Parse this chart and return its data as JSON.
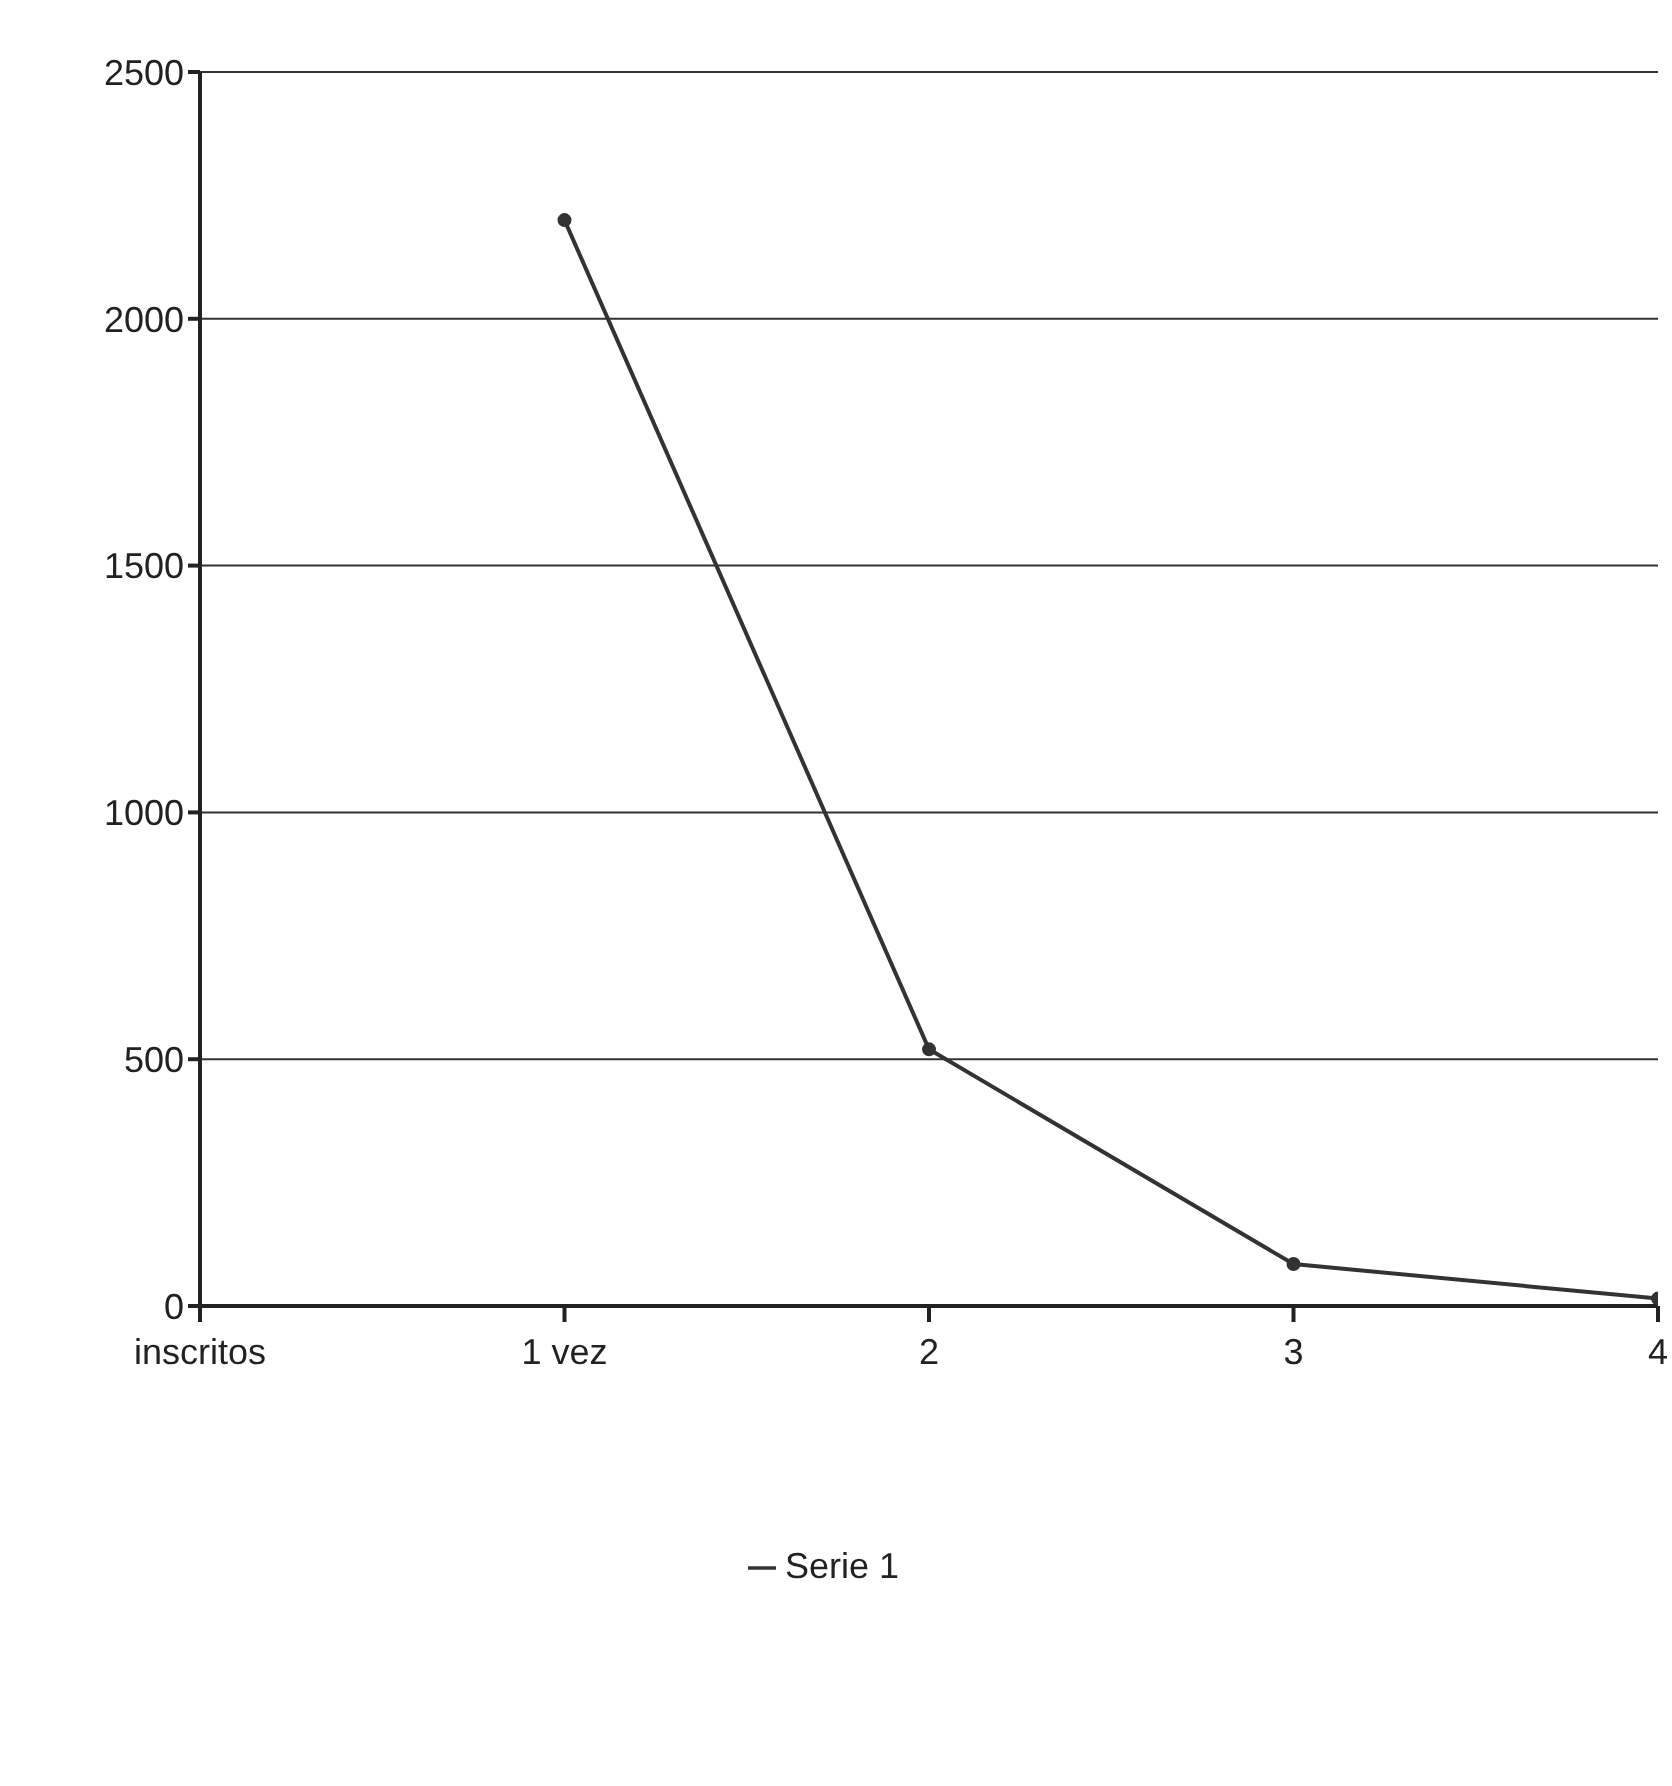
{
  "chart_data": {
    "type": "line",
    "categories": [
      "inscritos",
      "1 vez",
      "2",
      "3",
      "4"
    ],
    "series": [
      {
        "name": "Serie 1",
        "color": "#333333",
        "values": [
          null,
          2200,
          520,
          85,
          15
        ]
      }
    ],
    "ylim": [
      0,
      2500
    ],
    "yticks": [
      0,
      500,
      1000,
      1500,
      2000,
      2500
    ],
    "grid": "y",
    "legend": "bottom",
    "marker": "circle",
    "line_style": "solid"
  }
}
